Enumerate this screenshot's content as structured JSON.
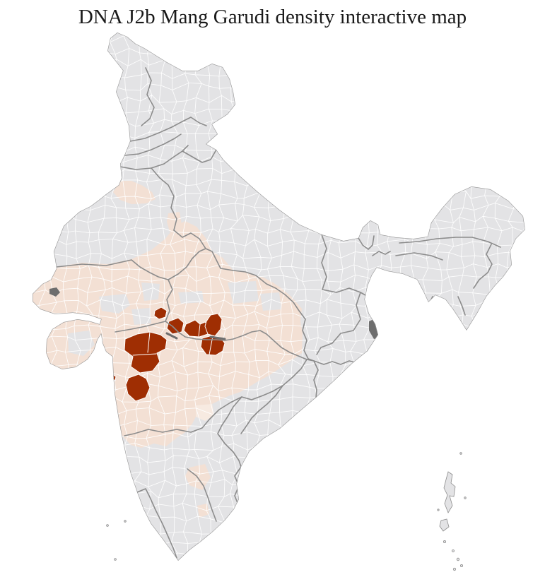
{
  "title": "DNA J2b Mang Garudi density interactive map",
  "map": {
    "label": "India district-level density choropleth",
    "colors": {
      "sea": "#ffffff",
      "no_data": "#e3e3e5",
      "low_density": "#f3e0d4",
      "low_density_pale": "#f7eae1",
      "high_density": "#9f2e03",
      "district_border": "#ffffff",
      "state_border": "#8c8c8c",
      "state_border_dark": "#6e6e6e",
      "coast": "#979797",
      "delta_marsh": "#6e6e6e"
    }
  }
}
